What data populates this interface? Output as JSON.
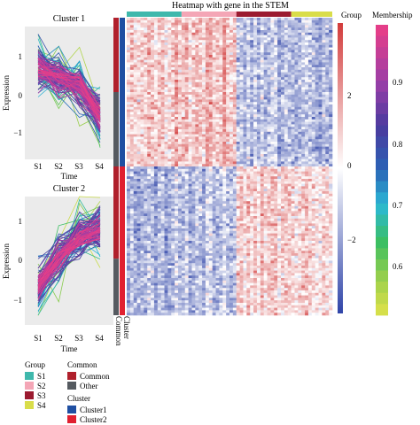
{
  "heatmap_title": "Heatmap with gene in the STEM",
  "colors": {
    "S1": "#3fb8ac",
    "S2": "#f4a6b6",
    "S3": "#9b1b30",
    "S4": "#d9dd4a",
    "Common": "#b0202c",
    "Other": "#555a60",
    "Cluster1": "#1f4fa2",
    "Cluster2": "#e02030",
    "heat_low": "#2f44a8",
    "heat_mid": "#ffffff",
    "heat_high": "#d23b3b"
  },
  "legends": {
    "group": {
      "title": "Group",
      "items": [
        "S1",
        "S2",
        "S3",
        "S4"
      ]
    },
    "common": {
      "title": "Common",
      "items": [
        "Common",
        "Other"
      ]
    },
    "cluster": {
      "title": "Cluster",
      "items": [
        "Cluster1",
        "Cluster2"
      ]
    },
    "membership": {
      "title": "Membership",
      "ticks": [
        "0.9",
        "0.8",
        "0.7",
        "0.6"
      ]
    },
    "heat": {
      "title": "Group",
      "ticks": [
        "2",
        "0",
        "−2"
      ]
    }
  },
  "row_labels": [
    "Cluster",
    "Common"
  ],
  "chart_data": [
    {
      "type": "line",
      "title": "Cluster 1",
      "xlabel": "Time",
      "ylabel": "Expression",
      "categories": [
        "S1",
        "S2",
        "S3",
        "S4"
      ],
      "yticks": [
        "1",
        "0",
        "−1"
      ],
      "ylim": [
        -1.6,
        1.6
      ],
      "mean_profile": [
        0.6,
        0.35,
        0.2,
        -0.55
      ],
      "n_lines": 120
    },
    {
      "type": "line",
      "title": "Cluster 2",
      "xlabel": "Time",
      "ylabel": "Expression",
      "categories": [
        "S1",
        "S2",
        "S3",
        "S4"
      ],
      "yticks": [
        "1",
        "0",
        "−1"
      ],
      "ylim": [
        -1.6,
        1.6
      ],
      "mean_profile": [
        -0.65,
        0.05,
        0.6,
        0.75
      ],
      "n_lines": 120
    },
    {
      "type": "heatmap",
      "color_range": [
        -3,
        3
      ],
      "n_columns": 60,
      "n_rows": 120,
      "group_sizes": [
        16,
        16,
        16,
        12
      ],
      "cluster_split_fraction": 0.5,
      "common_split_fraction": 0.25
    }
  ]
}
